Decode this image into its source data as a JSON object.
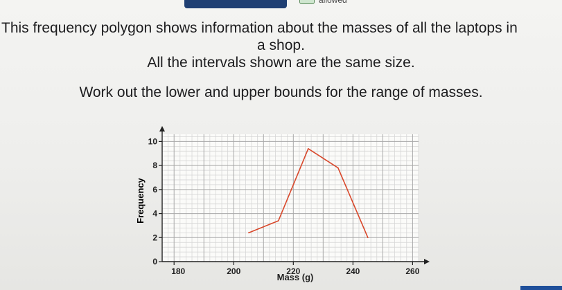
{
  "header": {
    "badge_text": "allowed"
  },
  "question": {
    "line1": "This frequency polygon shows information about the masses of all the laptops in",
    "line2": "a shop.",
    "line3": "All the intervals shown are the same size.",
    "task": "Work out the lower and upper bounds for the range of masses."
  },
  "chart_data": {
    "type": "line",
    "xlabel": "Mass (g)",
    "ylabel": "Frequency",
    "xlim": [
      176,
      262
    ],
    "ylim": [
      0,
      10.6
    ],
    "x_ticks": [
      180,
      200,
      220,
      240,
      260
    ],
    "x_tick_labels": [
      "180",
      "200",
      "220",
      "240",
      "260"
    ],
    "y_ticks": [
      0,
      2,
      4,
      6,
      8,
      10
    ],
    "y_tick_labels": [
      "0",
      "2",
      "4",
      "6",
      "8",
      "10"
    ],
    "grid": true,
    "series": [
      {
        "color": "#d9482b",
        "x": [
          205,
          215,
          225,
          235,
          245
        ],
        "y": [
          2.4,
          3.4,
          9.4,
          7.8,
          2.0
        ]
      }
    ]
  }
}
